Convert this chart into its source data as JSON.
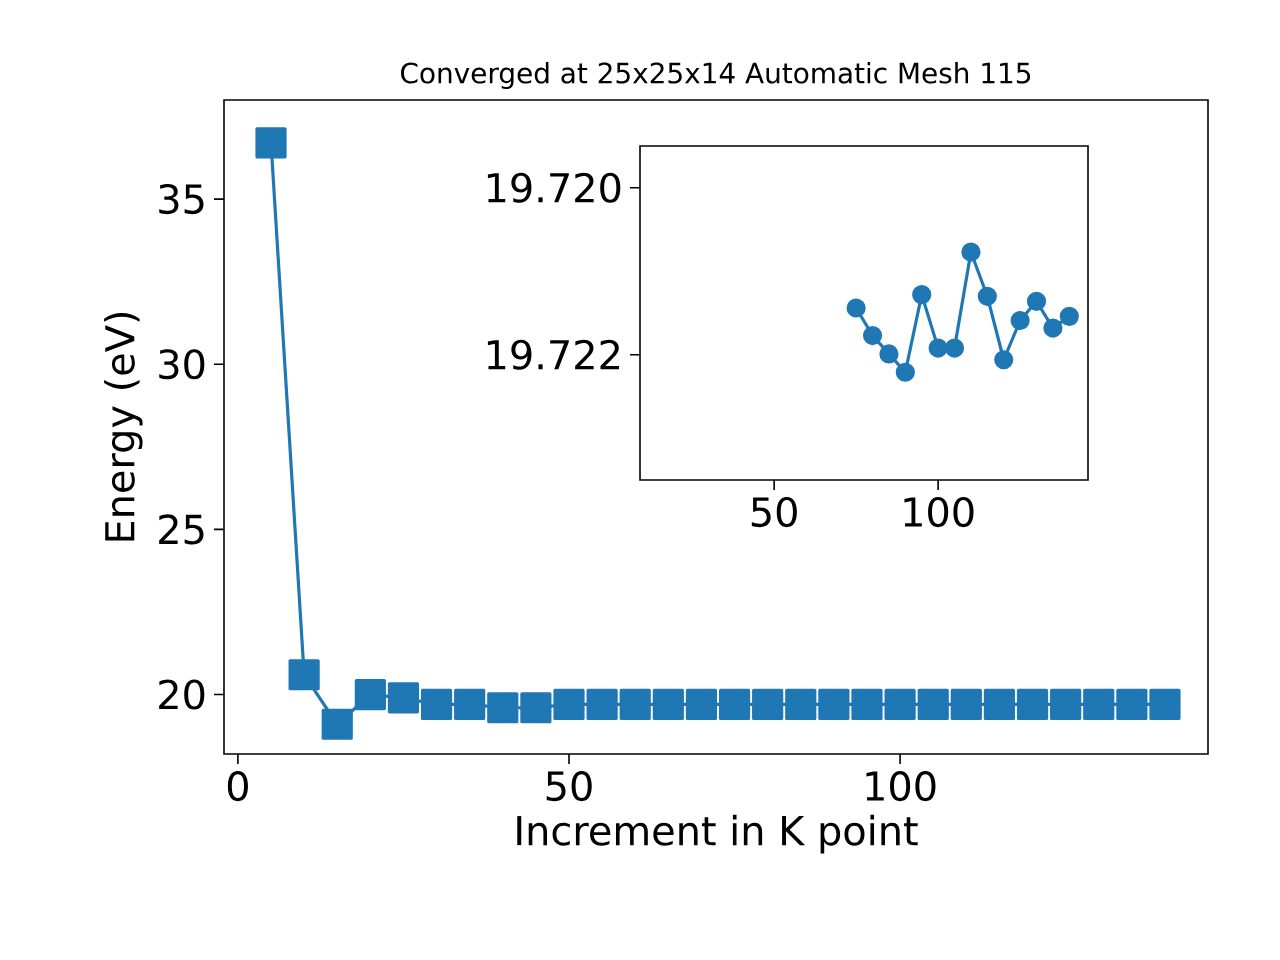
{
  "chart_data": [
    {
      "type": "line",
      "title": "Converged at 25x25x14 Automatic Mesh 115",
      "xlabel": "Increment in K point",
      "ylabel": "Energy (eV)",
      "color": "#1f77b4",
      "marker": "square",
      "x": [
        5,
        10,
        15,
        20,
        25,
        30,
        35,
        40,
        45,
        50,
        55,
        60,
        65,
        70,
        75,
        80,
        85,
        90,
        95,
        100,
        105,
        110,
        115,
        120,
        125,
        130,
        135,
        140
      ],
      "values": [
        36.7,
        20.6,
        19.1,
        20.0,
        19.9,
        19.7,
        19.7,
        19.6,
        19.6,
        19.7,
        19.7,
        19.7,
        19.7,
        19.7,
        19.7,
        19.7,
        19.7,
        19.7,
        19.7,
        19.7,
        19.7,
        19.7,
        19.7,
        19.7,
        19.7,
        19.7,
        19.7,
        19.7
      ],
      "xlim": [
        -2.1,
        146.5
      ],
      "ylim": [
        18.2,
        38.0
      ],
      "xticks": [
        0,
        50,
        100
      ],
      "yticks": [
        20,
        25,
        30,
        35
      ]
    },
    {
      "type": "line",
      "color": "#1f77b4",
      "marker": "circle",
      "x": [
        75,
        80,
        85,
        90,
        95,
        100,
        105,
        110,
        115,
        120,
        125,
        130,
        135,
        140
      ],
      "values": [
        19.72144,
        19.72177,
        19.72199,
        19.72221,
        19.72128,
        19.72192,
        19.72192,
        19.72077,
        19.7213,
        19.72206,
        19.72159,
        19.72136,
        19.72168,
        19.72154
      ],
      "xlim": [
        9.1,
        145.7
      ],
      "ylim": [
        19.7235,
        19.7195
      ],
      "xticks": [
        50,
        100
      ],
      "yticks": [
        {
          "value": 19.72,
          "label": "19.720"
        },
        {
          "value": 19.722,
          "label": "19.722"
        }
      ]
    }
  ]
}
